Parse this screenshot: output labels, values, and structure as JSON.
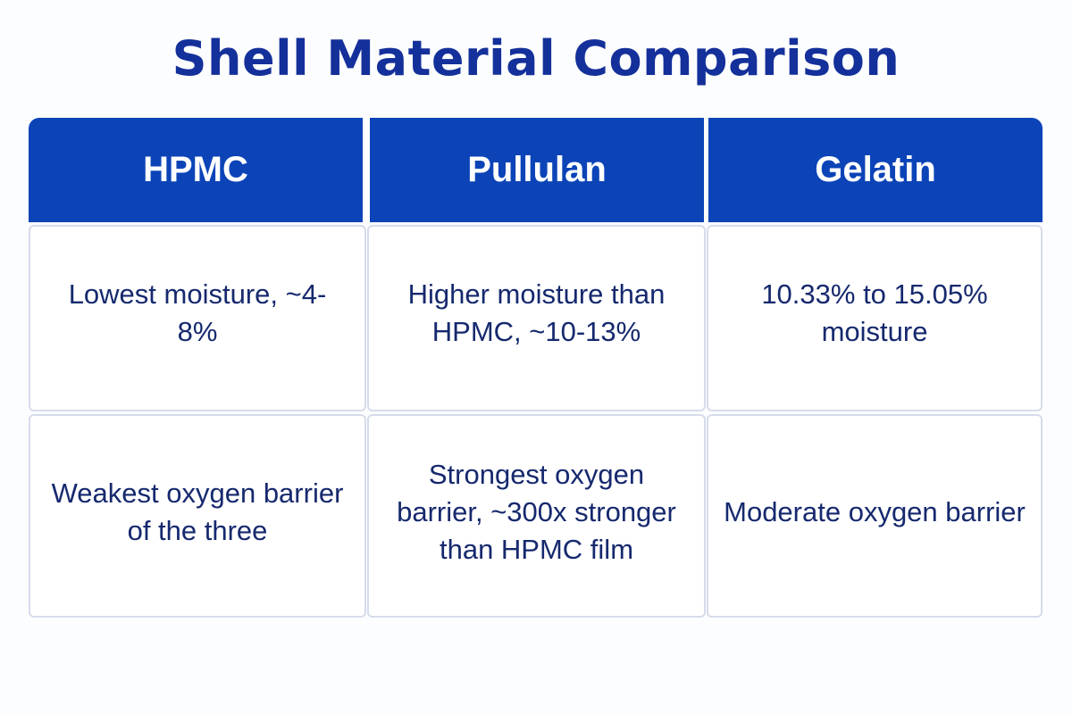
{
  "title": "Shell Material Comparison",
  "colors": {
    "title": "#14309a",
    "header_background": "#0c44b8",
    "header_text": "#ffffff",
    "cell_text": "#16296e",
    "cell_border": "#d6dcec"
  },
  "table": {
    "columns": [
      "HPMC",
      "Pullulan",
      "Gelatin"
    ],
    "rows": [
      [
        "Lowest moisture, ~4-8%",
        "Higher moisture than HPMC, ~10-13%",
        "10.33% to 15.05% moisture"
      ],
      [
        "Weakest oxygen barrier of the three",
        "Strongest oxygen barrier, ~300x stronger than HPMC film",
        "Moderate oxygen barrier"
      ]
    ]
  }
}
